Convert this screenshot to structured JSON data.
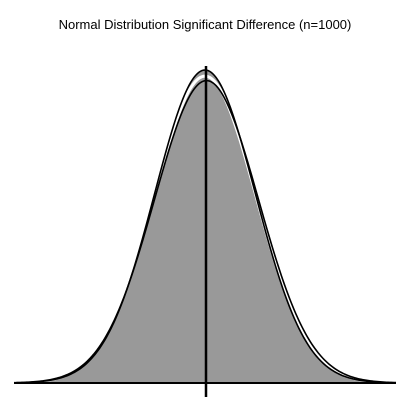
{
  "chart_data": {
    "type": "area",
    "title": "Normal Distribution Significant Difference (n=1000)",
    "xlabel": "",
    "ylabel": "",
    "grid": false,
    "series": [
      {
        "mean": 0.0,
        "sd": 1.0,
        "fill": "#999999",
        "stroke": "#000000"
      },
      {
        "mean": 0.03,
        "sd": 1.0,
        "fill": "none",
        "stroke": "#000000"
      }
    ],
    "reference_line": {
      "x": 0.0,
      "color": "#000000"
    },
    "xlim": [
      -3.8,
      3.8
    ],
    "colors": {
      "fill": "#999999",
      "line": "#000000",
      "background": "#ffffff"
    }
  }
}
